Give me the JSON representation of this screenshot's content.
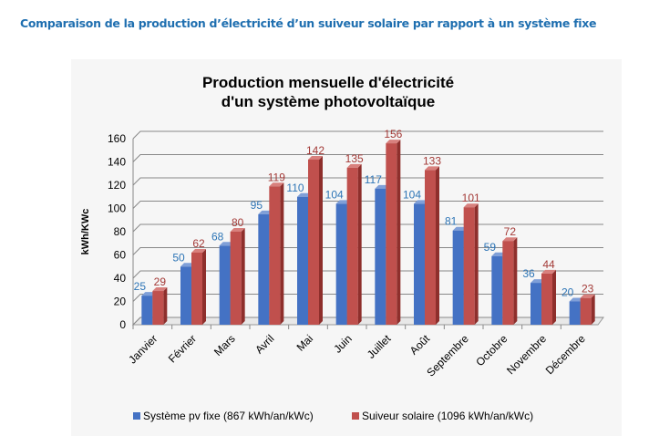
{
  "page_heading": "Comparaison de la production d’électricité d’un suiveur solaire par rapport à un système fixe",
  "chart_data": {
    "type": "bar",
    "title_line1": "Production mensuelle d'électricité",
    "title_line2": "d'un système photovoltaïque",
    "ylabel": "kWh/KWc",
    "xlabel": "",
    "ylim": [
      0,
      160
    ],
    "yticks": [
      0,
      20,
      40,
      60,
      80,
      100,
      120,
      140,
      160
    ],
    "grid": true,
    "legend_position": "bottom",
    "categories": [
      "Janvier",
      "Février",
      "Mars",
      "Avril",
      "Mai",
      "Juin",
      "Juillet",
      "Août",
      "Septembre",
      "Octobre",
      "Novembre",
      "Décembre"
    ],
    "series": [
      {
        "name": "Système pv fixe (867 kWh/an/kWc)",
        "color": "#4472c4",
        "label_color": "#2e75b6",
        "values": [
          25,
          50,
          68,
          95,
          110,
          104,
          117,
          104,
          81,
          59,
          36,
          20
        ]
      },
      {
        "name": "Suiveur solaire (1096 kWh/an/kWc)",
        "color": "#c0504d",
        "label_color": "#a33a37",
        "values": [
          29,
          62,
          80,
          119,
          142,
          135,
          156,
          133,
          101,
          72,
          44,
          23
        ]
      }
    ]
  }
}
